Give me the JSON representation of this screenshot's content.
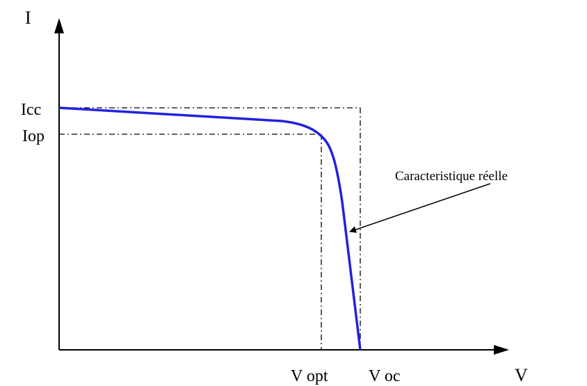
{
  "axes": {
    "y_label": "I",
    "x_label": "V"
  },
  "levels": {
    "icc": "Icc",
    "iop": "Iop"
  },
  "voltages": {
    "vopt": "V opt",
    "voc": "V oc"
  },
  "annotation": "Caracteristique réelle"
}
